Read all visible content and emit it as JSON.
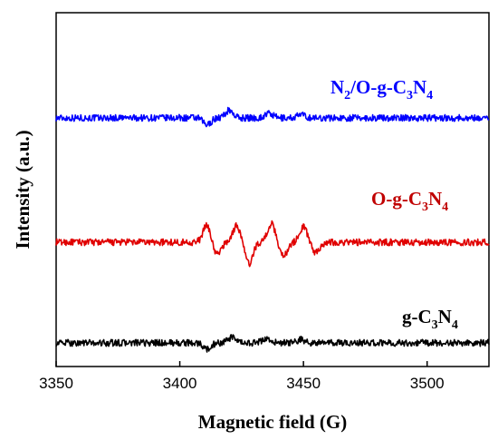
{
  "chart_data": {
    "type": "line",
    "title": "",
    "xlabel": "Magnetic field (G)",
    "ylabel": "Intensity (a.u.)",
    "xlim": [
      3350,
      3525
    ],
    "x_ticks": [
      "3350",
      "3400",
      "3450",
      "3500"
    ],
    "y_ticks": [],
    "grid": false,
    "legend": "none (series labeled directly above each trace)",
    "series": [
      {
        "name": "N2/O-g-C3N4",
        "label_parts": [
          "N",
          "2",
          "/O-g-C",
          "3",
          "N",
          "4"
        ],
        "color": "#0000ff",
        "baseline": 0.0,
        "noise": 0.12,
        "peaks": [
          {
            "x": 3411,
            "amp": -0.55
          },
          {
            "x": 3420,
            "amp": 0.6
          },
          {
            "x": 3436,
            "amp": 0.35
          },
          {
            "x": 3449,
            "amp": 0.25
          }
        ]
      },
      {
        "name": "O-g-C3N4",
        "label_parts": [
          "O-g-C",
          "3",
          "N",
          "4"
        ],
        "color": "#e00000",
        "baseline": 0.0,
        "noise": 0.12,
        "peaks": [
          {
            "x": 3411,
            "amp": 1.35
          },
          {
            "x": 3415,
            "amp": -1.0
          },
          {
            "x": 3423,
            "amp": 1.3
          },
          {
            "x": 3428,
            "amp": -1.7
          },
          {
            "x": 3437,
            "amp": 1.45
          },
          {
            "x": 3442,
            "amp": -1.05
          },
          {
            "x": 3450,
            "amp": 1.2
          },
          {
            "x": 3455,
            "amp": -0.8
          }
        ]
      },
      {
        "name": "g-C3N4",
        "label_parts": [
          "g-C",
          "3",
          "N",
          "4"
        ],
        "color": "#000000",
        "baseline": 0.0,
        "noise": 0.12,
        "peaks": [
          {
            "x": 3411,
            "amp": -0.5
          },
          {
            "x": 3421,
            "amp": 0.4
          },
          {
            "x": 3435,
            "amp": 0.35
          },
          {
            "x": 3449,
            "amp": 0.25
          }
        ]
      }
    ]
  }
}
